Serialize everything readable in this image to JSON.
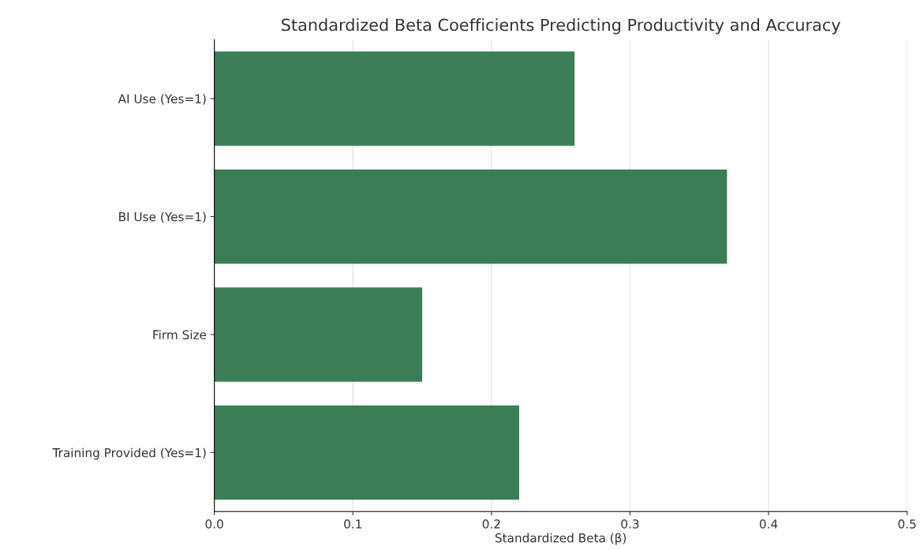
{
  "chart_data": {
    "type": "bar",
    "orientation": "horizontal",
    "title": "Standardized Beta Coefficients Predicting Productivity and Accuracy",
    "xlabel": "Standardized Beta (β)",
    "categories": [
      "AI Use (Yes=1)",
      "BI Use (Yes=1)",
      "Firm Size",
      "Training Provided (Yes=1)"
    ],
    "values": [
      0.26,
      0.37,
      0.15,
      0.22
    ],
    "color": "#3b7d57",
    "xlim": [
      0,
      0.5
    ],
    "xticks": [
      {
        "value": 0,
        "label": "0.0"
      },
      0.1,
      0.2,
      0.3,
      0.4,
      0.5
    ],
    "grid": "x",
    "legend": false
  }
}
